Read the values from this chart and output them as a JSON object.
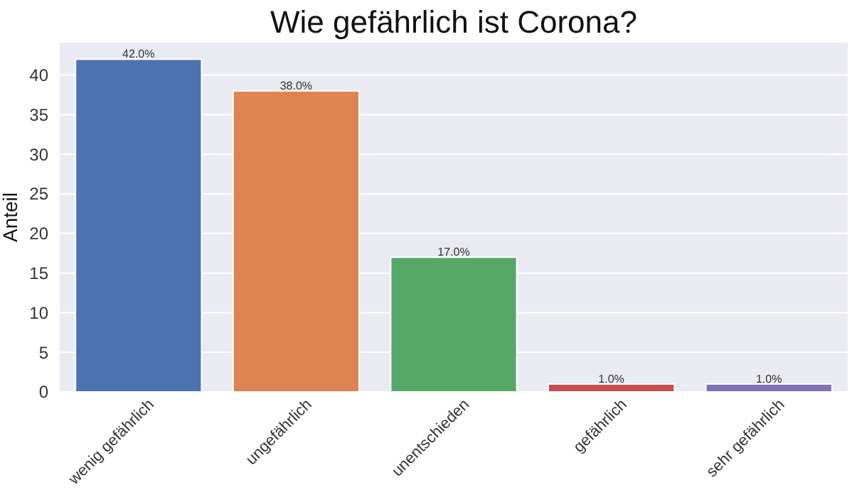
{
  "chart_data": {
    "type": "bar",
    "title": "Wie gefährlich ist Corona?",
    "ylabel": "Anteil",
    "categories": [
      "wenig gefährlich",
      "ungefährlich",
      "unentschieden",
      "gefährlich",
      "sehr gefährlich"
    ],
    "values": [
      42,
      38,
      17,
      1,
      1
    ],
    "colors": [
      "#4c72b0",
      "#dd8452",
      "#55a868",
      "#c44e52",
      "#8172b3"
    ],
    "value_labels": [
      "42.0%",
      "38.0%",
      "17.0%",
      "1.0%",
      "1.0%"
    ],
    "ylim": [
      0,
      44.1
    ],
    "yticks": [
      0,
      5,
      10,
      15,
      20,
      25,
      30,
      35,
      40
    ],
    "grid": "y"
  }
}
